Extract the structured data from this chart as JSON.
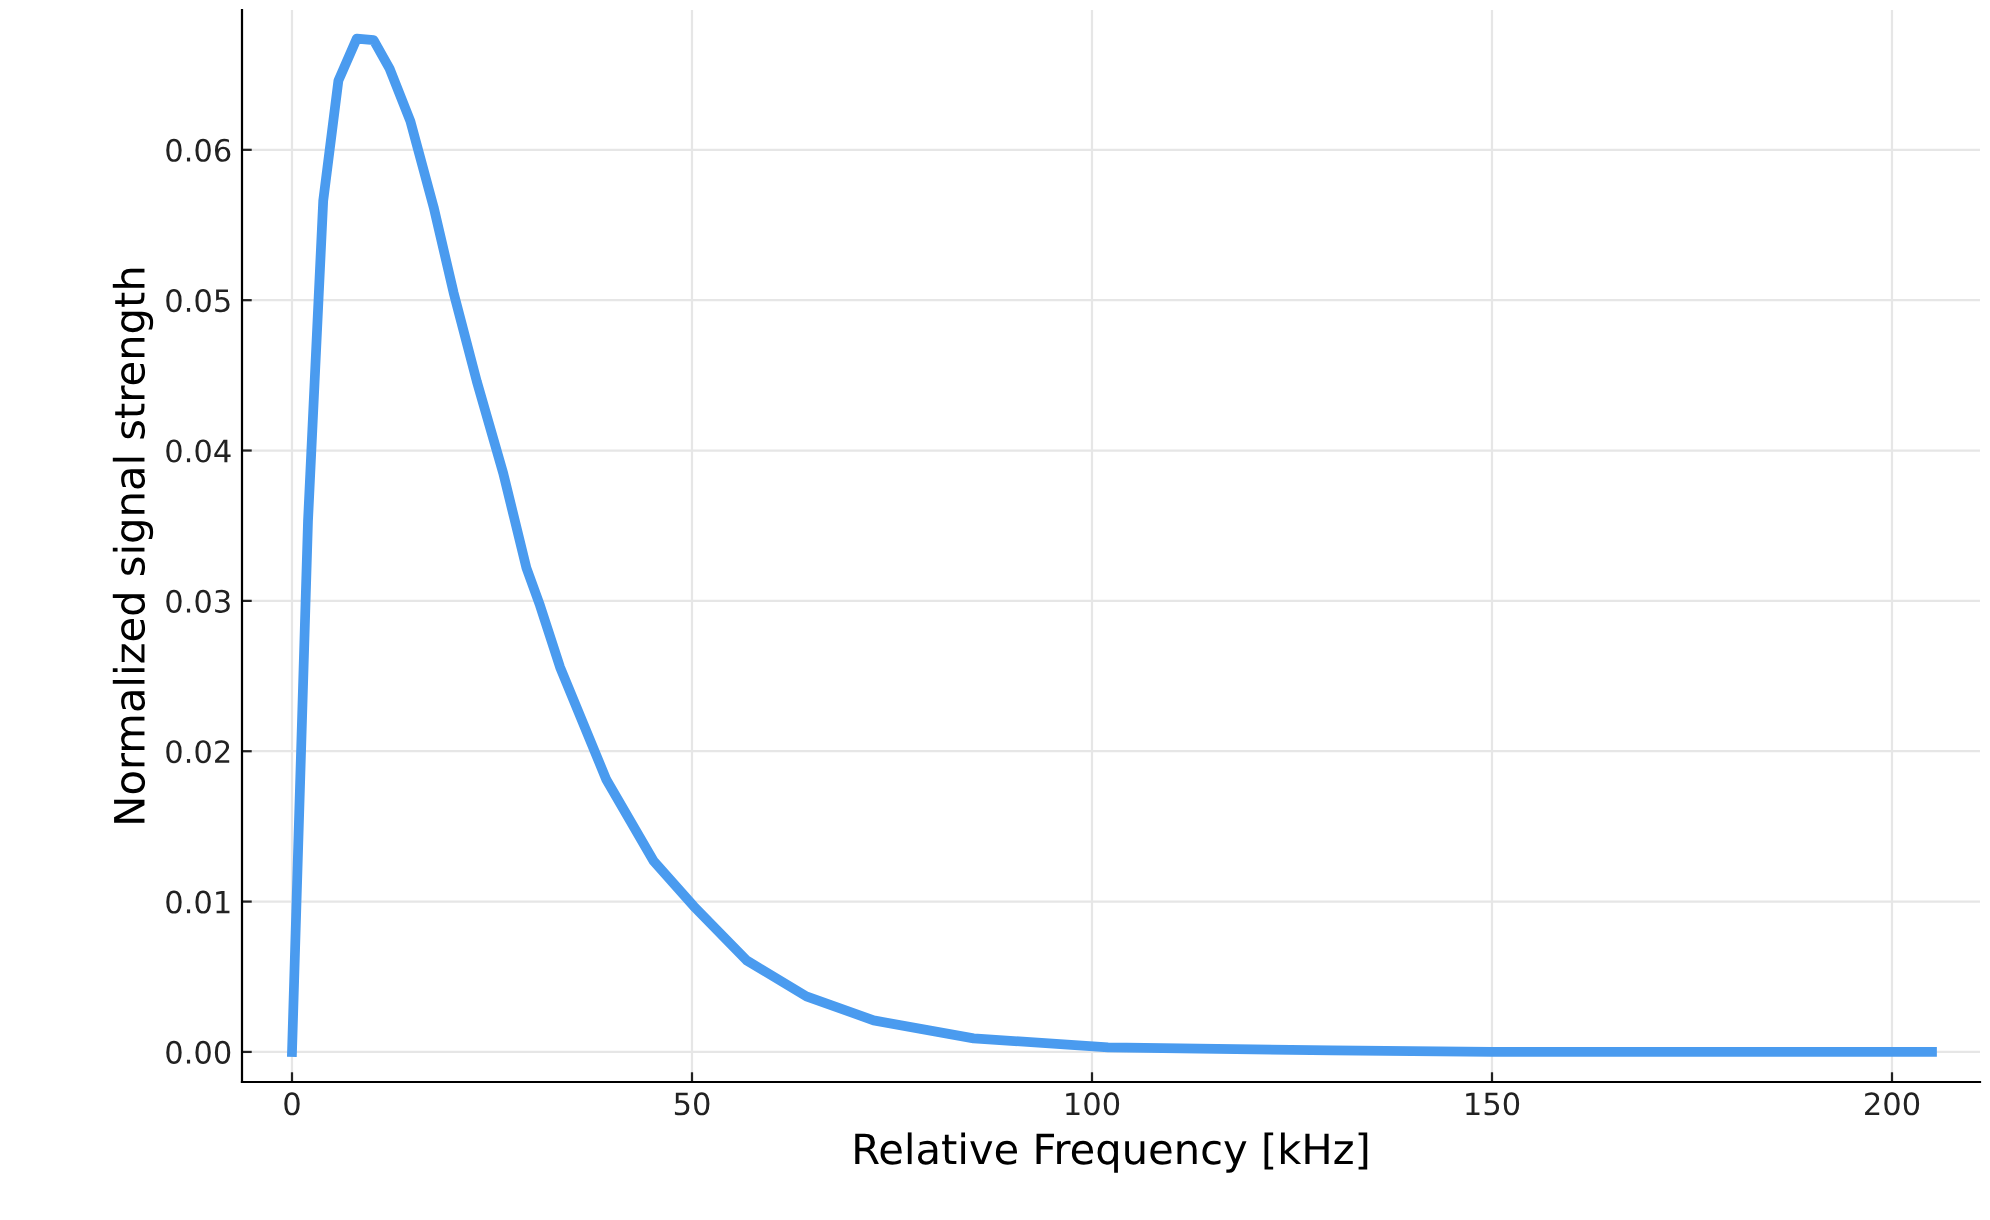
{
  "chart_data": {
    "type": "line",
    "xlabel": "Relative Frequency [kHz]",
    "ylabel": "Normalized signal strength",
    "series": [
      {
        "color": "#4a9bef",
        "x": [
          0,
          2,
          3.9,
          5.8,
          8.1,
          10.2,
          12.2,
          14.8,
          17.7,
          20.2,
          23.1,
          26.4,
          29.3,
          31,
          33.5,
          39.3,
          45.2,
          50.2,
          56.8,
          64.3,
          72.7,
          85.2,
          102,
          130,
          150,
          205
        ],
        "values": [
          0,
          0.0353,
          0.0566,
          0.0646,
          0.0674,
          0.0673,
          0.0654,
          0.0619,
          0.0562,
          0.0505,
          0.0446,
          0.0385,
          0.0322,
          0.0297,
          0.0256,
          0.0181,
          0.0127,
          0.0097,
          0.0061,
          0.0037,
          0.0021,
          0.0009,
          0.0003,
          0.0001,
          0,
          0
        ]
      }
    ],
    "xlim": [
      -6.25,
      211
    ],
    "ylim": [
      -0.002,
      0.0693
    ],
    "xticks": [
      0,
      50,
      100,
      150,
      200
    ],
    "yticks": [
      {
        "value": 0,
        "label": "0.00"
      },
      {
        "value": 0.01,
        "label": "0.01"
      },
      {
        "value": 0.02,
        "label": "0.02"
      },
      {
        "value": 0.03,
        "label": "0.03"
      },
      {
        "value": 0.04,
        "label": "0.04"
      },
      {
        "value": 0.05,
        "label": "0.05"
      },
      {
        "value": 0.06,
        "label": "0.06"
      }
    ],
    "grid": true,
    "legend": false,
    "line_style": "solid"
  }
}
